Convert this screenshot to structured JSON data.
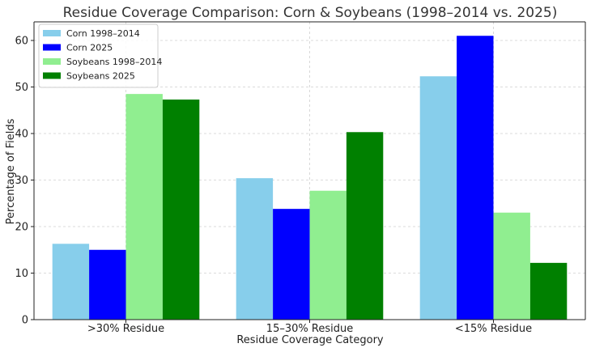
{
  "chart_data": {
    "type": "bar",
    "title": "Residue Coverage Comparison: Corn & Soybeans (1998–2014 vs. 2025)",
    "xlabel": "Residue Coverage Category",
    "ylabel": "Percentage of Fields",
    "categories": [
      ">30% Residue",
      "15–30% Residue",
      "<15% Residue"
    ],
    "ylim": [
      0,
      64
    ],
    "yticks": [
      0,
      10,
      20,
      30,
      40,
      50,
      60
    ],
    "grid": true,
    "legend_position": "top-left",
    "series": [
      {
        "name": "Corn 1998–2014",
        "color": "#87CEEB",
        "values": [
          16.3,
          30.4,
          52.3
        ]
      },
      {
        "name": "Corn 2025",
        "color": "#0000FF",
        "values": [
          15.0,
          23.8,
          61.0
        ]
      },
      {
        "name": "Soybeans 1998–2014",
        "color": "#90EE90",
        "values": [
          48.5,
          27.7,
          23.0
        ]
      },
      {
        "name": "Soybeans 2025",
        "color": "#008000",
        "values": [
          47.3,
          40.3,
          12.2
        ]
      }
    ]
  }
}
